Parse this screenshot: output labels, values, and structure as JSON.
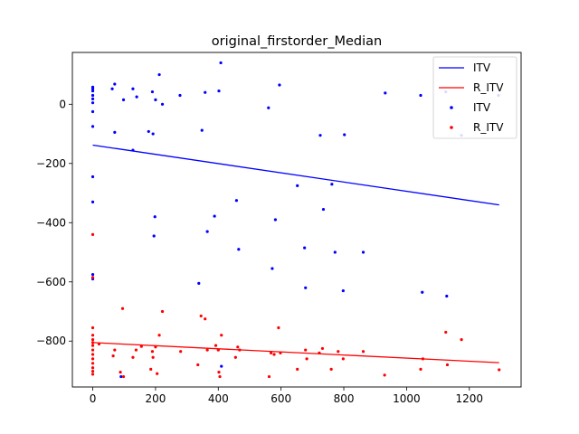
{
  "chart_data": {
    "type": "scatter",
    "title": "original_firstorder_Median",
    "xlabel": "",
    "ylabel": "",
    "xlim": [
      -65,
      1365
    ],
    "ylim": [
      -955,
      175
    ],
    "xticks": [
      0,
      200,
      400,
      600,
      800,
      1000,
      1200
    ],
    "yticks": [
      -800,
      -600,
      -400,
      -200,
      0
    ],
    "xtick_labels": [
      "0",
      "200",
      "400",
      "600",
      "800",
      "1000",
      "1200"
    ],
    "ytick_labels": [
      "−800",
      "−600",
      "−400",
      "−200",
      "0"
    ],
    "grid": false,
    "legend_position": "top-right",
    "legend": [
      {
        "label": "ITV",
        "kind": "line",
        "color": "#0000ff"
      },
      {
        "label": "R_ITV",
        "kind": "line",
        "color": "#ff0000"
      },
      {
        "label": "ITV",
        "kind": "marker",
        "color": "#0000ff"
      },
      {
        "label": "R_ITV",
        "kind": "marker",
        "color": "#ff0000"
      }
    ],
    "lines": [
      {
        "name": "ITV",
        "color": "#0000ff",
        "x": [
          0,
          1295
        ],
        "y": [
          -138,
          -340
        ]
      },
      {
        "name": "R_ITV",
        "color": "#ff0000",
        "x": [
          0,
          1295
        ],
        "y": [
          -805,
          -873
        ]
      }
    ],
    "series": [
      {
        "name": "ITV",
        "color": "#0000ff",
        "points": [
          [
            0,
            58
          ],
          [
            0,
            52
          ],
          [
            0,
            45
          ],
          [
            0,
            30
          ],
          [
            0,
            18
          ],
          [
            0,
            5
          ],
          [
            0,
            -25
          ],
          [
            0,
            -75
          ],
          [
            0,
            -245
          ],
          [
            0,
            -330
          ],
          [
            0,
            -575
          ],
          [
            0,
            -590
          ],
          [
            62,
            52
          ],
          [
            70,
            68
          ],
          [
            70,
            -95
          ],
          [
            90,
            -920
          ],
          [
            98,
            15
          ],
          [
            128,
            52
          ],
          [
            128,
            -155
          ],
          [
            140,
            25
          ],
          [
            178,
            -92
          ],
          [
            190,
            42
          ],
          [
            192,
            -100
          ],
          [
            195,
            -445
          ],
          [
            198,
            -380
          ],
          [
            200,
            15
          ],
          [
            212,
            100
          ],
          [
            222,
            0
          ],
          [
            278,
            30
          ],
          [
            338,
            -605
          ],
          [
            348,
            -88
          ],
          [
            358,
            40
          ],
          [
            365,
            -430
          ],
          [
            388,
            -378
          ],
          [
            402,
            45
          ],
          [
            408,
            140
          ],
          [
            410,
            -885
          ],
          [
            458,
            -325
          ],
          [
            465,
            -490
          ],
          [
            560,
            -12
          ],
          [
            572,
            -555
          ],
          [
            582,
            -390
          ],
          [
            595,
            65
          ],
          [
            652,
            -275
          ],
          [
            675,
            -485
          ],
          [
            678,
            -620
          ],
          [
            725,
            -105
          ],
          [
            735,
            -355
          ],
          [
            762,
            -270
          ],
          [
            772,
            -500
          ],
          [
            798,
            -630
          ],
          [
            802,
            -103
          ],
          [
            862,
            -500
          ],
          [
            932,
            38
          ],
          [
            1045,
            30
          ],
          [
            1050,
            -635
          ],
          [
            1125,
            42
          ],
          [
            1128,
            -648
          ],
          [
            1175,
            -105
          ],
          [
            1293,
            30
          ]
        ]
      },
      {
        "name": "R_ITV",
        "color": "#ff0000",
        "points": [
          [
            0,
            -440
          ],
          [
            0,
            -585
          ],
          [
            0,
            -755
          ],
          [
            0,
            -780
          ],
          [
            0,
            -795
          ],
          [
            0,
            -805
          ],
          [
            0,
            -815
          ],
          [
            0,
            -830
          ],
          [
            0,
            -845
          ],
          [
            0,
            -860
          ],
          [
            0,
            -875
          ],
          [
            0,
            -890
          ],
          [
            0,
            -902
          ],
          [
            0,
            -912
          ],
          [
            20,
            -810
          ],
          [
            65,
            -850
          ],
          [
            70,
            -830
          ],
          [
            88,
            -905
          ],
          [
            95,
            -690
          ],
          [
            98,
            -920
          ],
          [
            128,
            -855
          ],
          [
            138,
            -830
          ],
          [
            155,
            -818
          ],
          [
            185,
            -895
          ],
          [
            190,
            -835
          ],
          [
            192,
            -855
          ],
          [
            200,
            -820
          ],
          [
            205,
            -910
          ],
          [
            212,
            -780
          ],
          [
            222,
            -700
          ],
          [
            280,
            -835
          ],
          [
            335,
            -880
          ],
          [
            345,
            -715
          ],
          [
            358,
            -725
          ],
          [
            365,
            -830
          ],
          [
            392,
            -815
          ],
          [
            400,
            -830
          ],
          [
            402,
            -905
          ],
          [
            405,
            -920
          ],
          [
            410,
            -780
          ],
          [
            455,
            -855
          ],
          [
            462,
            -820
          ],
          [
            468,
            -830
          ],
          [
            562,
            -920
          ],
          [
            568,
            -840
          ],
          [
            578,
            -845
          ],
          [
            592,
            -755
          ],
          [
            598,
            -840
          ],
          [
            652,
            -895
          ],
          [
            678,
            -830
          ],
          [
            682,
            -860
          ],
          [
            722,
            -840
          ],
          [
            732,
            -825
          ],
          [
            760,
            -895
          ],
          [
            782,
            -835
          ],
          [
            798,
            -860
          ],
          [
            862,
            -835
          ],
          [
            930,
            -915
          ],
          [
            1045,
            -895
          ],
          [
            1052,
            -860
          ],
          [
            1125,
            -770
          ],
          [
            1130,
            -880
          ],
          [
            1175,
            -795
          ],
          [
            1295,
            -897
          ]
        ]
      }
    ]
  }
}
